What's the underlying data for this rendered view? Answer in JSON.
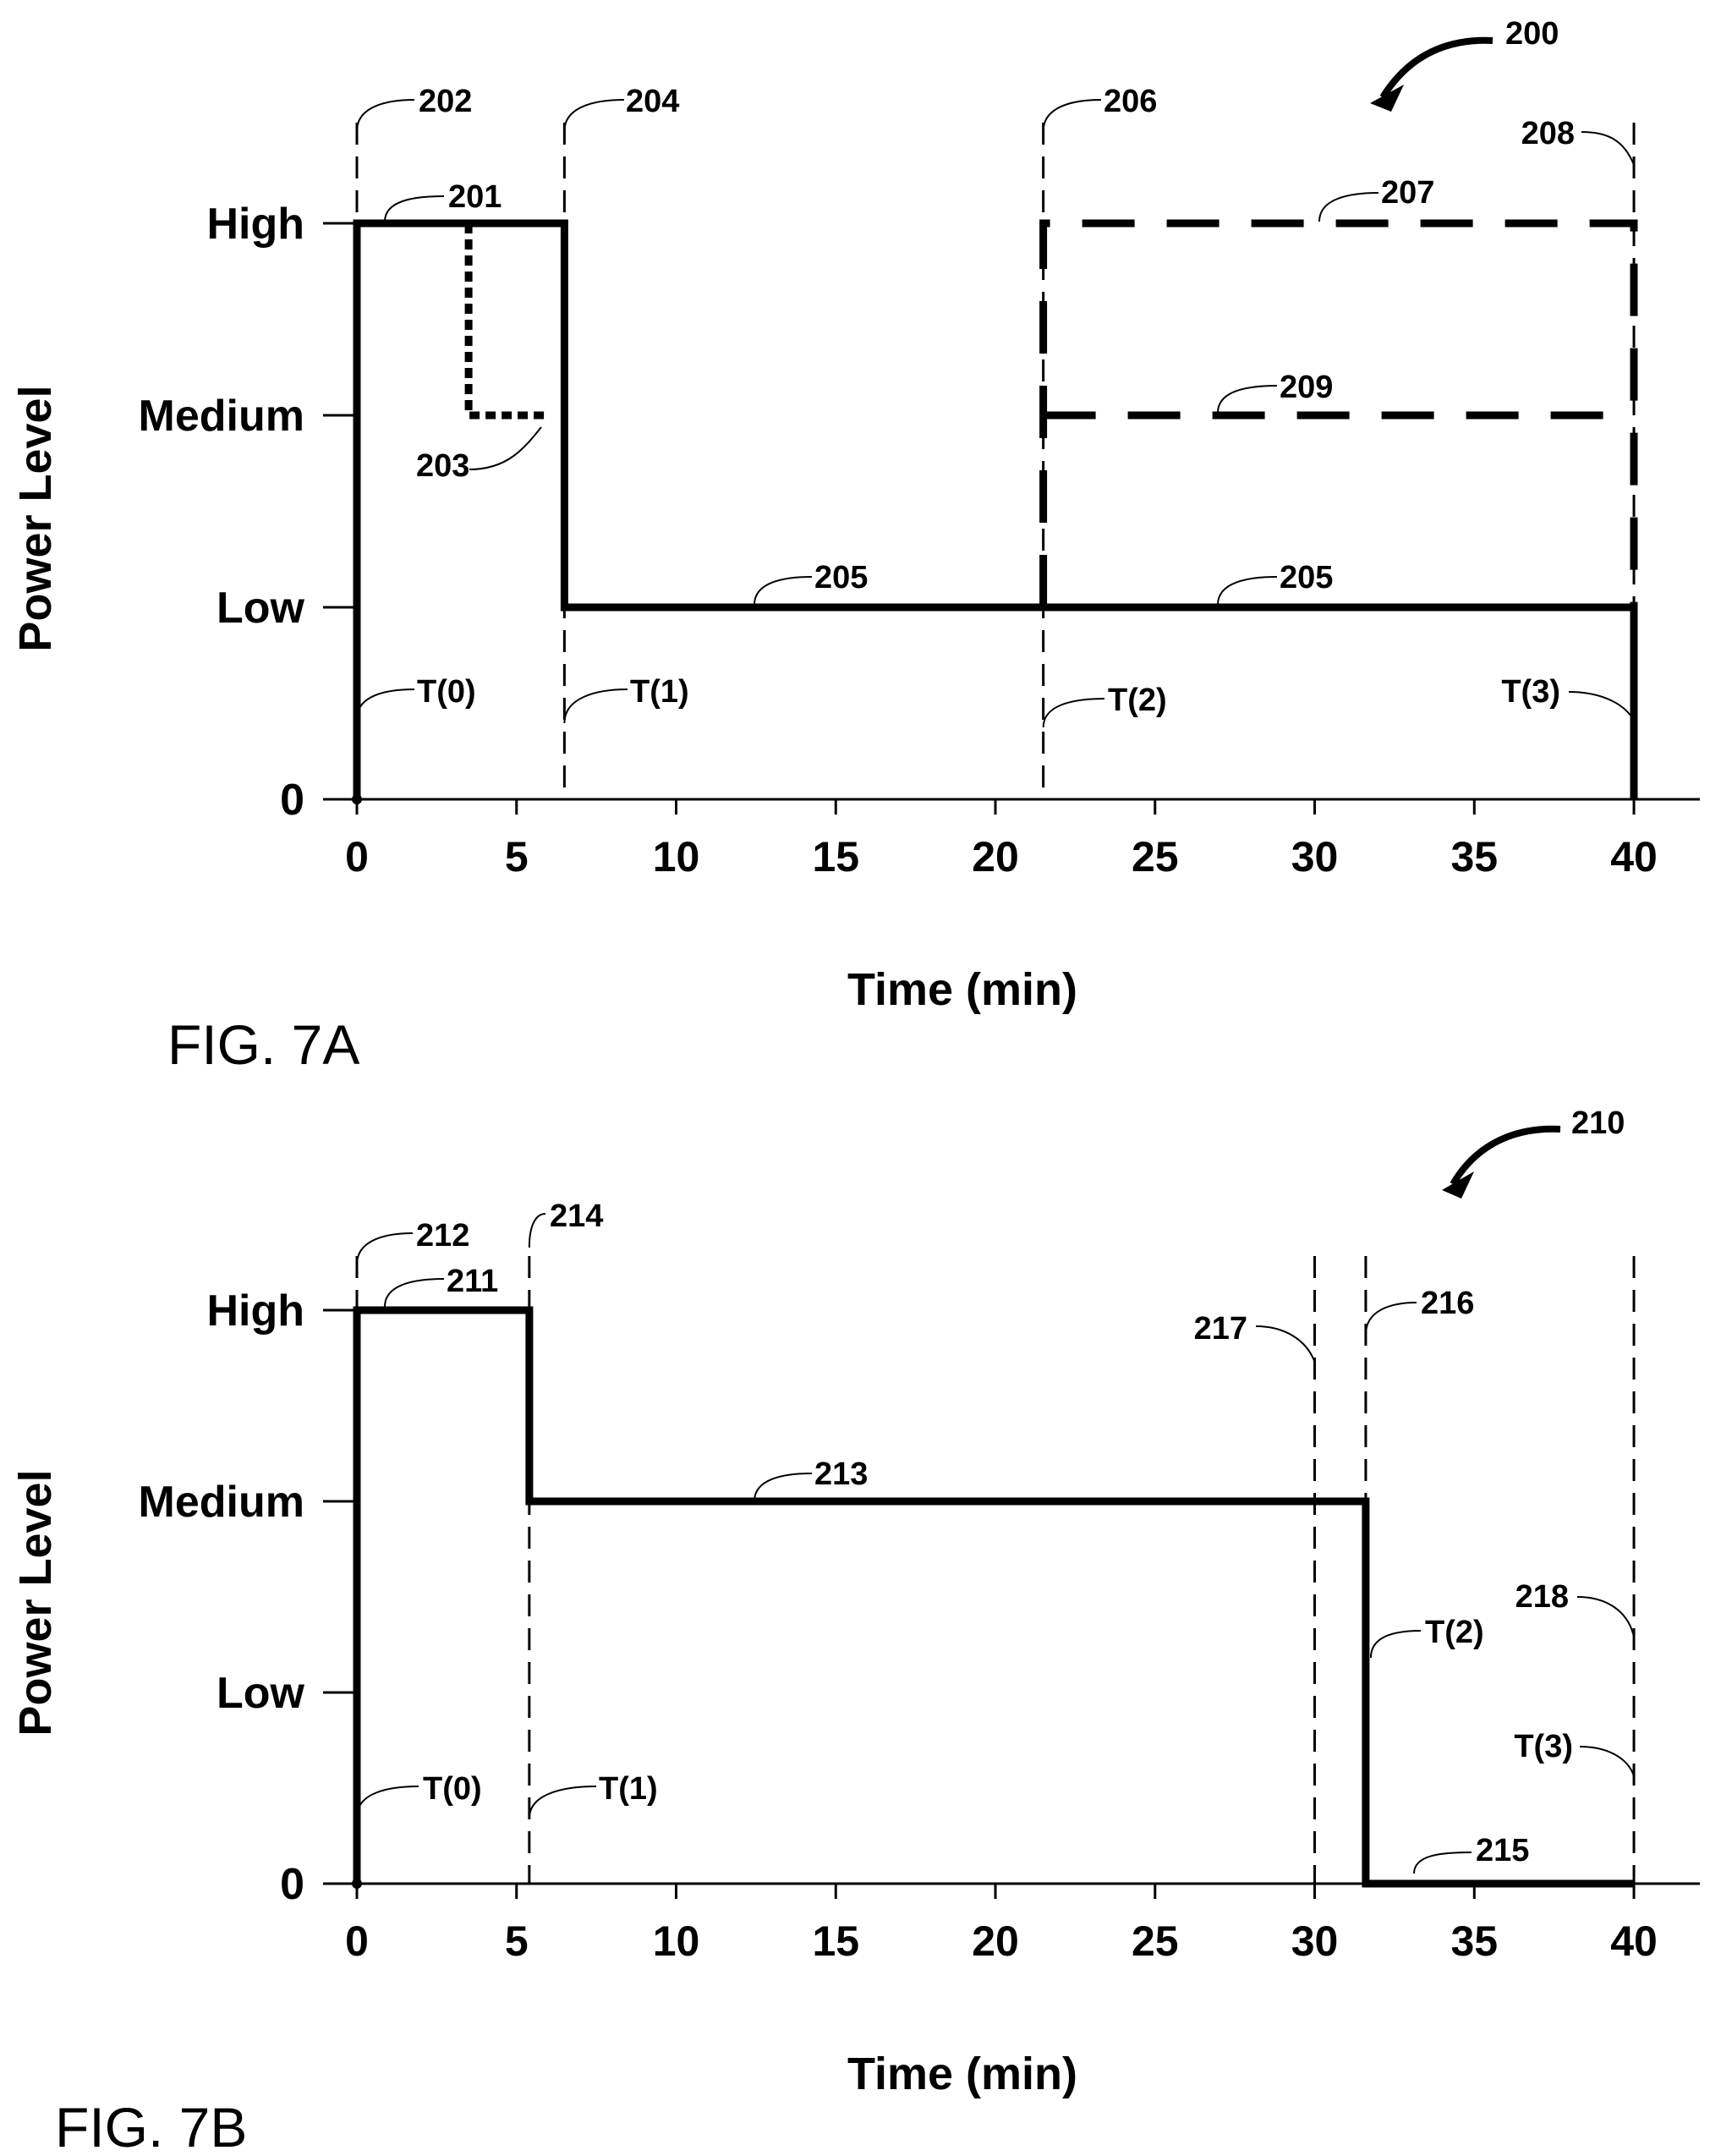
{
  "chart_data": [
    {
      "type": "line",
      "figure_label": "FIG. 7A",
      "figure_ref": "200",
      "xlabel": "Time (min)",
      "ylabel": "Power Level",
      "xlim": [
        0,
        40
      ],
      "x_ticks": [
        "0",
        "5",
        "10",
        "15",
        "20",
        "25",
        "30",
        "35",
        "40"
      ],
      "y_levels": [
        "0",
        "Low",
        "Medium",
        "High"
      ],
      "series": [
        {
          "ref": "201/205",
          "style": "solid-thick",
          "points": [
            [
              0,
              0
            ],
            [
              0,
              3
            ],
            [
              6.5,
              3
            ],
            [
              6.5,
              1
            ],
            [
              40,
              1
            ],
            [
              40,
              0
            ]
          ]
        },
        {
          "ref": "203",
          "style": "dotted",
          "points": [
            [
              3.5,
              3
            ],
            [
              3.5,
              2
            ],
            [
              6,
              2
            ]
          ]
        },
        {
          "ref": "207",
          "style": "dashed-thick",
          "points": [
            [
              21.5,
              1
            ],
            [
              21.5,
              3
            ],
            [
              40,
              3
            ],
            [
              40,
              1
            ]
          ]
        },
        {
          "ref": "209",
          "style": "dashed-thick",
          "points": [
            [
              21.5,
              2
            ],
            [
              40,
              2
            ]
          ]
        }
      ],
      "markers": [
        {
          "x": 0,
          "ref": "202",
          "time_label": "T(0)"
        },
        {
          "x": 6.5,
          "ref": "204",
          "time_label": "T(1)"
        },
        {
          "x": 21.5,
          "ref": "206",
          "time_label": "T(2)"
        },
        {
          "x": 40,
          "ref": "208",
          "time_label": "T(3)"
        }
      ],
      "callouts": [
        {
          "text": "201",
          "x": 1.0,
          "y": 3
        },
        {
          "text": "203",
          "x": 6.0,
          "y": 2
        },
        {
          "text": "205",
          "x": 12.5,
          "y": 1
        },
        {
          "text": "205",
          "x": 27.0,
          "y": 1
        },
        {
          "text": "207",
          "x": 30.0,
          "y": 3
        },
        {
          "text": "209",
          "x": 27.0,
          "y": 2
        }
      ]
    },
    {
      "type": "line",
      "figure_label": "FIG. 7B",
      "figure_ref": "210",
      "xlabel": "Time (min)",
      "ylabel": "Power Level",
      "xlim": [
        0,
        40
      ],
      "x_ticks": [
        "0",
        "5",
        "10",
        "15",
        "20",
        "25",
        "30",
        "35",
        "40"
      ],
      "y_levels": [
        "0",
        "Low",
        "Medium",
        "High"
      ],
      "series": [
        {
          "ref": "211/213/215",
          "style": "solid-thick",
          "points": [
            [
              0,
              0
            ],
            [
              0,
              3
            ],
            [
              5.4,
              3
            ],
            [
              5.4,
              2
            ],
            [
              31.6,
              2
            ],
            [
              31.6,
              0
            ],
            [
              40,
              0
            ]
          ]
        }
      ],
      "markers": [
        {
          "x": 0,
          "ref": "212",
          "time_label": "T(0)"
        },
        {
          "x": 5.4,
          "ref": "214",
          "time_label": "T(1)"
        },
        {
          "x": 30.0,
          "ref": "217",
          "time_label": ""
        },
        {
          "x": 31.6,
          "ref": "216",
          "time_label": "T(2)"
        },
        {
          "x": 40,
          "ref": "218",
          "time_label": "T(3)"
        }
      ],
      "callouts": [
        {
          "text": "211",
          "x": 1.0,
          "y": 3
        },
        {
          "text": "213",
          "x": 12.5,
          "y": 2
        },
        {
          "text": "215",
          "x": 34.0,
          "y": 0
        }
      ]
    }
  ]
}
